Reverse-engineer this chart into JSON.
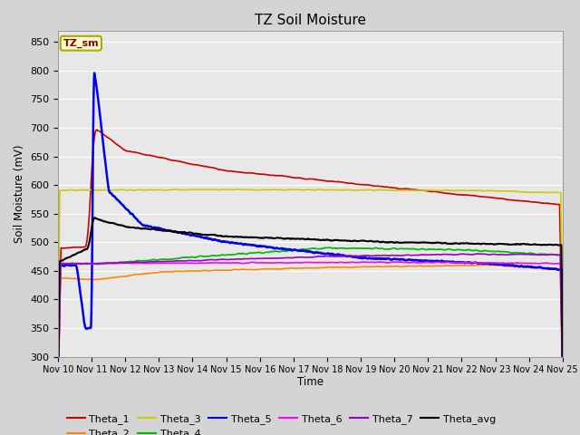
{
  "title": "TZ Soil Moisture",
  "xlabel": "Time",
  "ylabel": "Soil Moisture (mV)",
  "ylim": [
    300,
    870
  ],
  "yticks": [
    300,
    350,
    400,
    450,
    500,
    550,
    600,
    650,
    700,
    750,
    800,
    850
  ],
  "xlim": [
    0,
    15
  ],
  "legend_label": "TZ_sm",
  "fig_facecolor": "#d4d4d4",
  "plot_bg_color": "#e8e8e8",
  "grid_color": "#ffffff",
  "series": {
    "Theta_1": {
      "color": "#cc0000",
      "lw": 1.2
    },
    "Theta_2": {
      "color": "#ff8800",
      "lw": 1.2
    },
    "Theta_3": {
      "color": "#cccc00",
      "lw": 1.2
    },
    "Theta_4": {
      "color": "#00bb00",
      "lw": 1.2
    },
    "Theta_5": {
      "color": "#0000ee",
      "lw": 1.8
    },
    "Theta_6": {
      "color": "#ff00ff",
      "lw": 1.2
    },
    "Theta_7": {
      "color": "#9900cc",
      "lw": 1.2
    },
    "Theta_avg": {
      "color": "#000000",
      "lw": 1.5
    }
  }
}
